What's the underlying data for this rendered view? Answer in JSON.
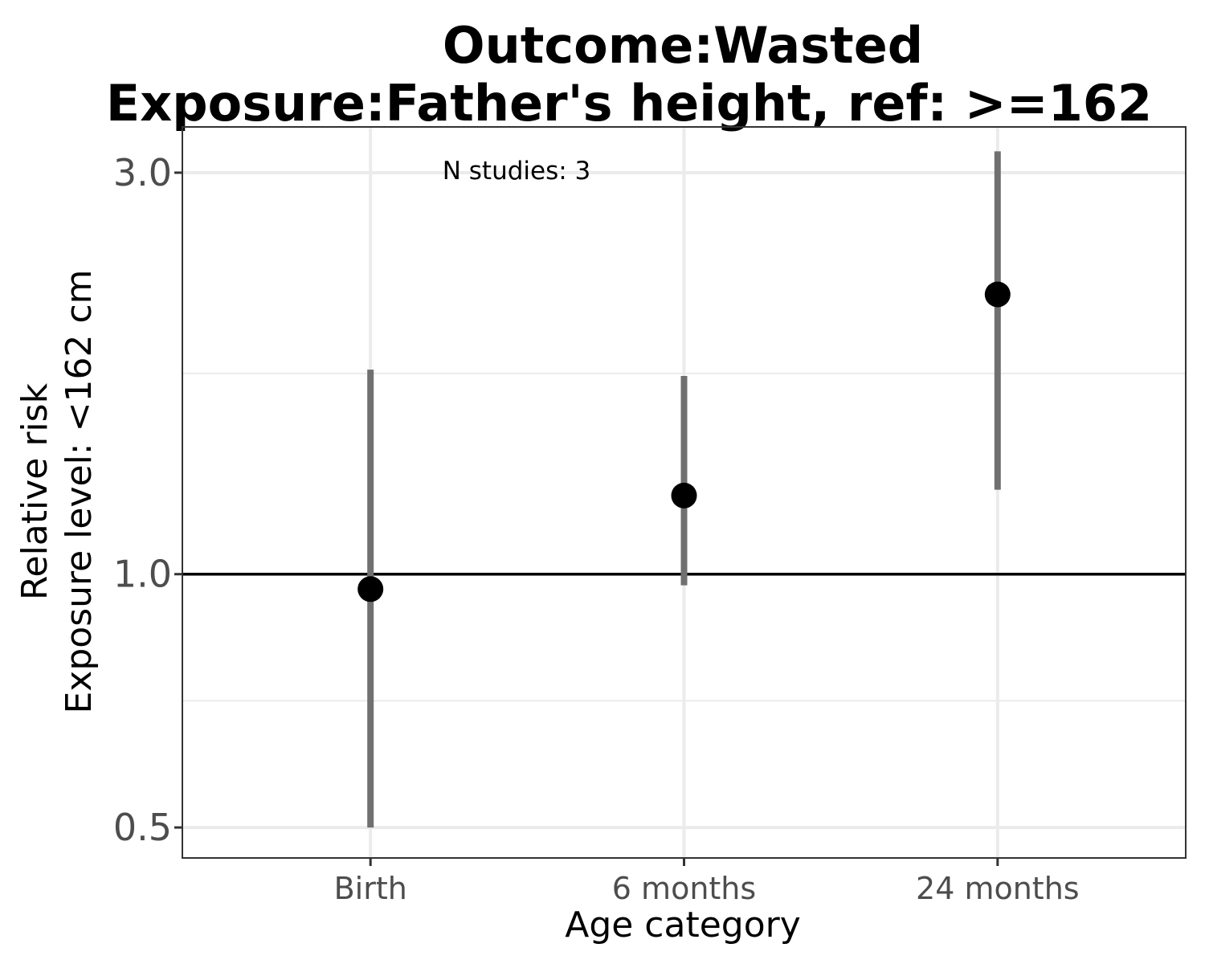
{
  "chart_data": {
    "type": "scatter",
    "title": "Outcome:Wasted",
    "subtitle": "Exposure:Father's height, ref: >=162",
    "xlabel": "Age category",
    "ylabel": "Relative risk",
    "ylabel2": "Exposure level: <162 cm",
    "categories": [
      "Birth",
      "6 months",
      "24 months"
    ],
    "estimates": [
      0.96,
      1.24,
      2.15
    ],
    "ci_lower": [
      0.5,
      0.97,
      1.26
    ],
    "ci_upper": [
      1.75,
      1.72,
      3.18
    ],
    "y_scale": "log",
    "ylim": [
      0.46,
      3.4
    ],
    "y_ticks": [
      0.5,
      1.0,
      3.0
    ],
    "y_tick_labels": [
      "0.5",
      "1.0",
      "3.0"
    ],
    "reference_line": 1.0,
    "annotation": "N studies: 3",
    "grid": true,
    "colors": {
      "point": "#000000",
      "error_bar": "#707070",
      "reference_line": "#000000",
      "grid": "#ebebeb",
      "panel_border": "#333333"
    }
  }
}
